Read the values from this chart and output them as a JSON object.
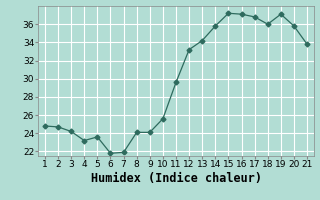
{
  "x": [
    1,
    2,
    3,
    4,
    5,
    6,
    7,
    8,
    9,
    10,
    11,
    12,
    13,
    14,
    15,
    16,
    17,
    18,
    19,
    20,
    21
  ],
  "y": [
    24.8,
    24.7,
    24.2,
    23.2,
    23.6,
    21.8,
    21.9,
    24.1,
    24.1,
    25.6,
    29.6,
    33.2,
    34.2,
    35.8,
    37.2,
    37.1,
    36.8,
    36.0,
    37.1,
    35.8,
    33.8
  ],
  "xlabel": "Humidex (Indice chaleur)",
  "ylim": [
    21.5,
    38.0
  ],
  "xlim": [
    0.5,
    21.5
  ],
  "yticks": [
    22,
    24,
    26,
    28,
    30,
    32,
    34,
    36
  ],
  "xticks": [
    1,
    2,
    3,
    4,
    5,
    6,
    7,
    8,
    9,
    10,
    11,
    12,
    13,
    14,
    15,
    16,
    17,
    18,
    19,
    20,
    21
  ],
  "line_color": "#2e6b5e",
  "marker": "D",
  "marker_size": 2.5,
  "bg_color": "#b2ddd4",
  "grid_color": "#ffffff",
  "label_color": "#000000",
  "tick_fontsize": 6.5,
  "xlabel_fontsize": 8.5
}
